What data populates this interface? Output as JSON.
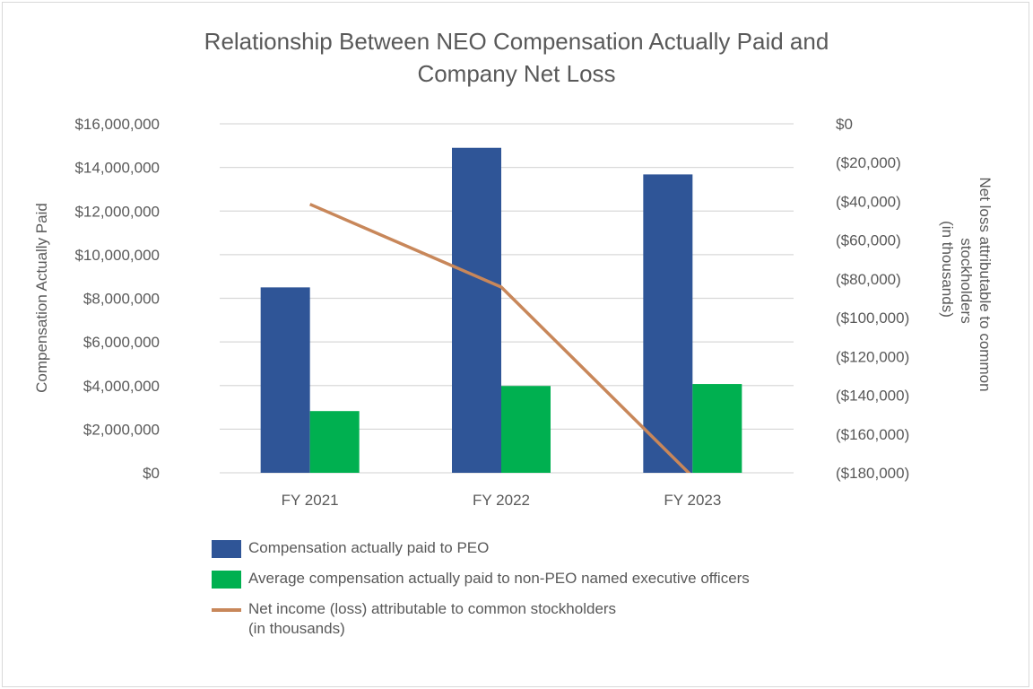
{
  "chart_data": {
    "type": "bar",
    "title": "Relationship Between NEO Compensation Actually Paid and Company Net Loss",
    "categories": [
      "FY 2021",
      "FY 2022",
      "FY 2023"
    ],
    "ylabel": "Compensation Actually Paid",
    "y2label_lines": [
      "Net loss attributable to common",
      "stockholders",
      "(in thousands)"
    ],
    "ylim": [
      0,
      16000000
    ],
    "y2lim": [
      -180000,
      0
    ],
    "yticks": [
      "$0",
      "$2,000,000",
      "$4,000,000",
      "$6,000,000",
      "$8,000,000",
      "$10,000,000",
      "$12,000,000",
      "$14,000,000",
      "$16,000,000"
    ],
    "y2ticks": [
      "$0",
      "($20,000)",
      "($40,000)",
      "($60,000)",
      "($80,000)",
      "($100,000)",
      "($120,000)",
      "($140,000)",
      "($160,000)",
      "($180,000)"
    ],
    "grid": true,
    "legend_position": "bottom",
    "series": [
      {
        "name": "Compensation actually paid to PEO",
        "type": "bar",
        "axis": "left",
        "color": "#2f5597",
        "values": [
          8500000,
          14900000,
          13680000
        ]
      },
      {
        "name": "Average compensation actually paid to non-PEO named executive officers",
        "type": "bar",
        "axis": "left",
        "color": "#00b050",
        "values": [
          2830000,
          3980000,
          4070000
        ]
      },
      {
        "name": "Net income (loss) attributable to common stockholders",
        "name_line2": "(in thousands)",
        "type": "line",
        "axis": "right",
        "color": "#c8875a",
        "values": [
          -41500,
          -84200,
          -182000
        ]
      }
    ]
  }
}
